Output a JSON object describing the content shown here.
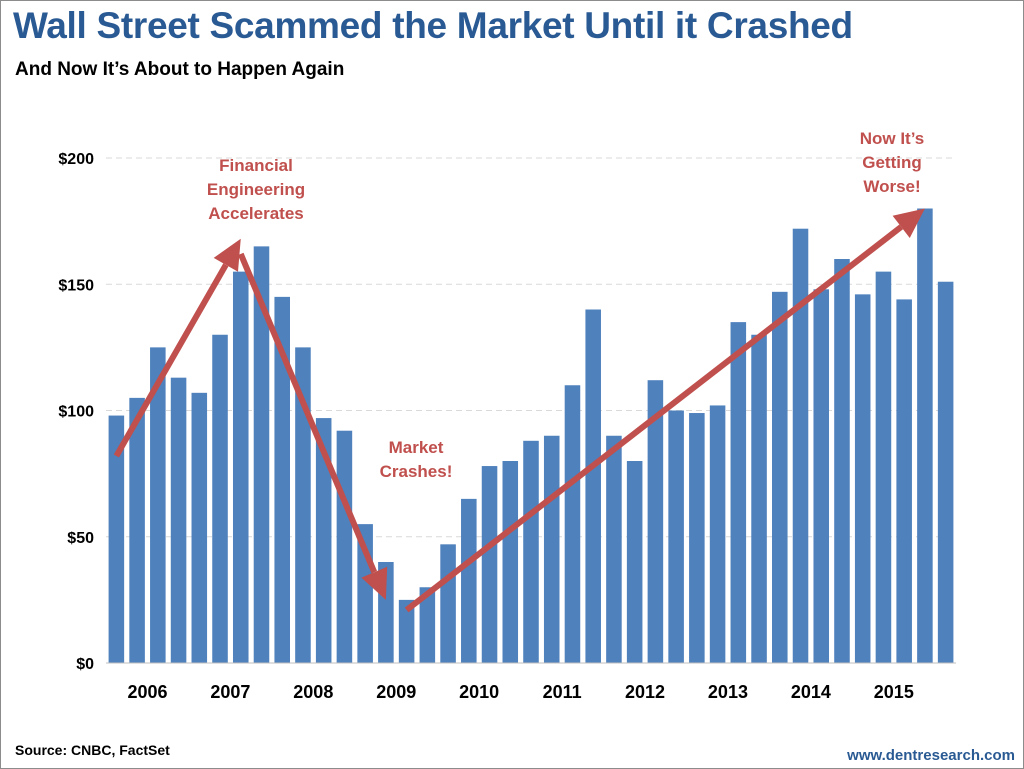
{
  "header": {
    "title": "Wall Street Scammed the Market Until it Crashed",
    "subtitle": "And Now It’s About to Happen Again"
  },
  "footer": {
    "source": "Source: CNBC, FactSet",
    "website": "www.dentresearch.com"
  },
  "colors": {
    "bar": "#4f81bd",
    "arrow": "#c0504d",
    "title": "#2a5a93",
    "gridline": "#d9d9d9"
  },
  "chart_data": {
    "type": "bar",
    "title": "Wall Street Scammed the Market Until it Crashed",
    "subtitle": "And Now It’s About to Happen Again",
    "xlabel": "",
    "ylabel": "",
    "ylim": [
      0,
      200
    ],
    "yticks": [
      0,
      50,
      100,
      150,
      200
    ],
    "ytick_labels": [
      "$0",
      "$50",
      "$100",
      "$150",
      "$200"
    ],
    "grid": true,
    "legend": "none",
    "year_labels": [
      "2006",
      "2007",
      "2008",
      "2009",
      "2010",
      "2011",
      "2012",
      "2013",
      "2014",
      "2015"
    ],
    "categories": [
      "2006 Q1",
      "2006 Q2",
      "2006 Q3",
      "2006 Q4",
      "2007 Q1",
      "2007 Q2",
      "2007 Q3",
      "2007 Q4",
      "2008 Q1",
      "2008 Q2",
      "2008 Q3",
      "2008 Q4",
      "2009 Q1",
      "2009 Q2",
      "2009 Q3",
      "2009 Q4",
      "2010 Q1",
      "2010 Q2",
      "2010 Q3",
      "2010 Q4",
      "2011 Q1",
      "2011 Q2",
      "2011 Q3",
      "2011 Q4",
      "2012 Q1",
      "2012 Q2",
      "2012 Q3",
      "2012 Q4",
      "2013 Q1",
      "2013 Q2",
      "2013 Q3",
      "2013 Q4",
      "2014 Q1",
      "2014 Q2",
      "2014 Q3",
      "2014 Q4",
      "2015 Q1",
      "2015 Q2",
      "2015 Q3",
      "2015 Q4",
      "2016 Q1"
    ],
    "values": [
      98,
      105,
      125,
      113,
      107,
      130,
      155,
      165,
      145,
      125,
      97,
      92,
      55,
      40,
      25,
      30,
      47,
      65,
      78,
      80,
      88,
      90,
      110,
      140,
      90,
      80,
      112,
      100,
      99,
      102,
      135,
      130,
      147,
      172,
      148,
      160,
      146,
      155,
      144,
      180,
      151
    ],
    "annotations": [
      {
        "text": "Financial Engineering Accelerates",
        "lines": [
          "Financial",
          "Engineering",
          "Accelerates"
        ],
        "from": {
          "x": "2006 Q1",
          "y": 82
        },
        "to": {
          "x": "2007 Q3",
          "y": 168
        }
      },
      {
        "text": "Market Crashes!",
        "lines": [
          "Market",
          "Crashes!"
        ],
        "from": {
          "x": "2007 Q3",
          "y": 162
        },
        "to": {
          "x": "2009 Q2",
          "y": 25
        }
      },
      {
        "text": "Now It’s Getting Worse!",
        "lines": [
          "Now It’s",
          "Getting",
          "Worse!"
        ],
        "from": {
          "x": "2009 Q3",
          "y": 21
        },
        "to": {
          "x": "2015 Q4",
          "y": 180
        }
      }
    ]
  }
}
